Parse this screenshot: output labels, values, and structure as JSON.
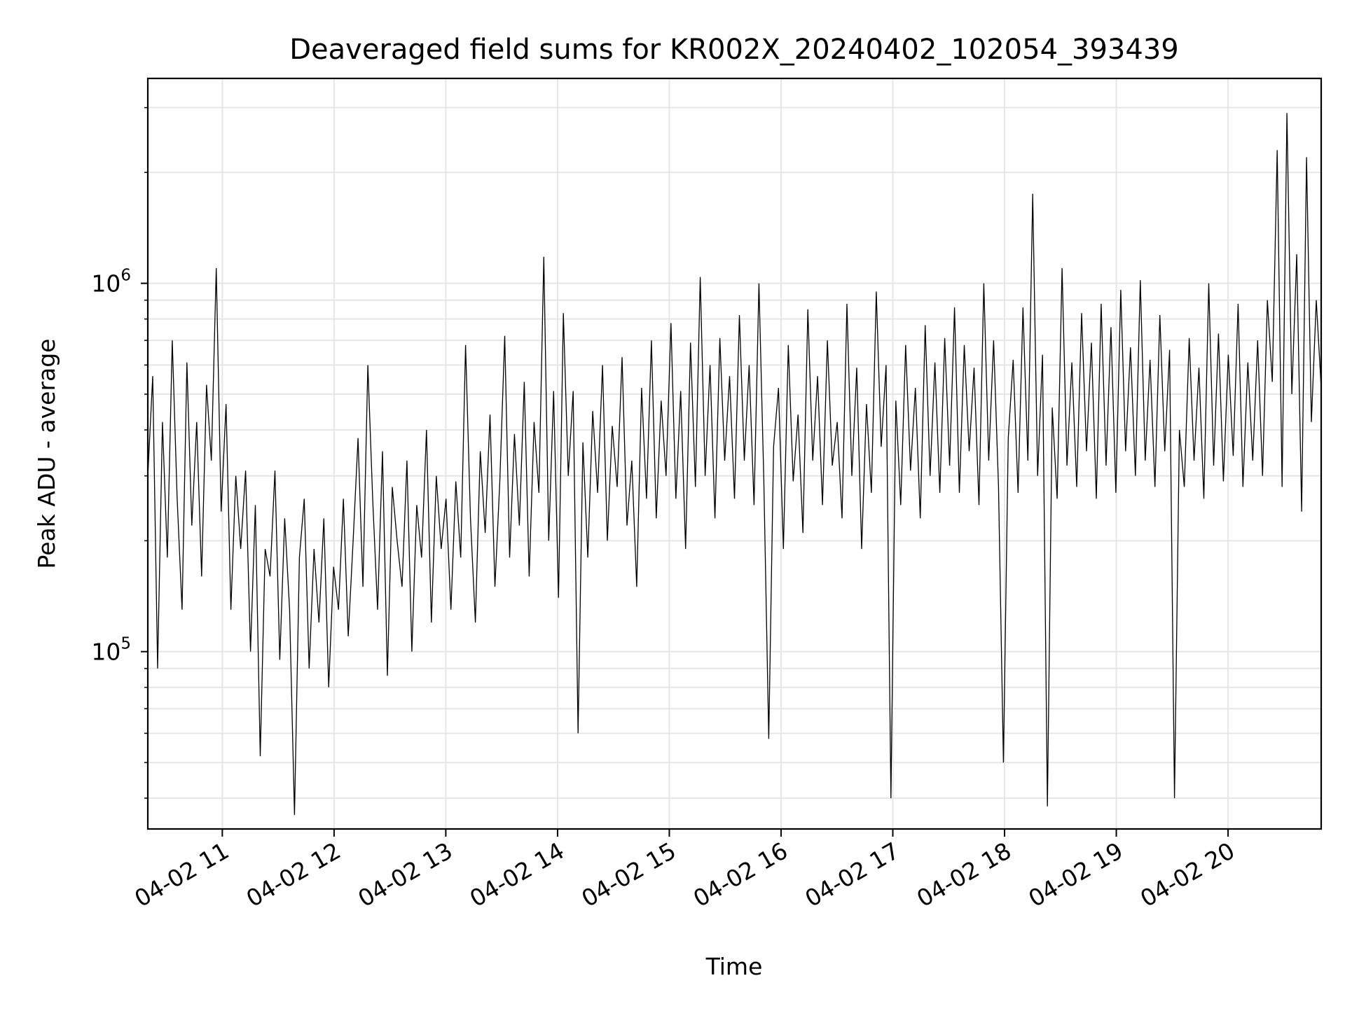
{
  "chart_data": {
    "type": "line",
    "title": "Deaveraged field sums for KR002X_20240402_102054_393439",
    "xlabel": "Time",
    "ylabel": "Peak ADU - average",
    "x_ticks": [
      "04-02 11",
      "04-02 12",
      "04-02 13",
      "04-02 14",
      "04-02 15",
      "04-02 16",
      "04-02 17",
      "04-02 18",
      "04-02 19",
      "04-02 20"
    ],
    "y_ticks": [
      {
        "base": "10",
        "exp": "5"
      },
      {
        "base": "10",
        "exp": "6"
      }
    ],
    "y_scale": "log",
    "xlim": [
      "2024-04-02 10:20",
      "2024-04-02 20:50"
    ],
    "ylim": [
      33000,
      3600000
    ],
    "grid": true,
    "series_color": "#000000",
    "series": [
      {
        "x_start": "2024-04-02 10:20",
        "x_end": "2024-04-02 20:50",
        "values": [
          300000,
          560000,
          90000,
          420000,
          180000,
          700000,
          260000,
          130000,
          610000,
          220000,
          420000,
          160000,
          530000,
          330000,
          1100000,
          240000,
          470000,
          130000,
          300000,
          190000,
          310000,
          100000,
          250000,
          52000,
          190000,
          160000,
          310000,
          95000,
          230000,
          130000,
          36000,
          180000,
          260000,
          90000,
          190000,
          120000,
          230000,
          80000,
          170000,
          130000,
          260000,
          110000,
          200000,
          380000,
          150000,
          600000,
          260000,
          130000,
          350000,
          86000,
          280000,
          200000,
          150000,
          330000,
          100000,
          250000,
          180000,
          400000,
          120000,
          300000,
          190000,
          260000,
          130000,
          290000,
          180000,
          680000,
          230000,
          120000,
          350000,
          210000,
          440000,
          150000,
          290000,
          720000,
          180000,
          390000,
          220000,
          540000,
          160000,
          420000,
          270000,
          1180000,
          200000,
          510000,
          140000,
          830000,
          300000,
          510000,
          60000,
          370000,
          180000,
          450000,
          270000,
          600000,
          200000,
          410000,
          280000,
          630000,
          220000,
          330000,
          150000,
          520000,
          260000,
          700000,
          230000,
          480000,
          300000,
          780000,
          260000,
          510000,
          190000,
          690000,
          280000,
          1040000,
          300000,
          600000,
          230000,
          710000,
          330000,
          560000,
          260000,
          820000,
          330000,
          600000,
          250000,
          1000000,
          290000,
          58000,
          360000,
          520000,
          190000,
          680000,
          290000,
          440000,
          210000,
          850000,
          330000,
          560000,
          250000,
          700000,
          320000,
          420000,
          230000,
          880000,
          300000,
          590000,
          190000,
          470000,
          270000,
          950000,
          360000,
          600000,
          40000,
          480000,
          250000,
          680000,
          310000,
          520000,
          230000,
          770000,
          300000,
          610000,
          270000,
          710000,
          320000,
          860000,
          270000,
          680000,
          350000,
          590000,
          250000,
          1000000,
          330000,
          700000,
          280000,
          50000,
          380000,
          620000,
          270000,
          860000,
          330000,
          1750000,
          300000,
          640000,
          38000,
          460000,
          260000,
          1100000,
          320000,
          610000,
          280000,
          830000,
          350000,
          690000,
          260000,
          880000,
          320000,
          760000,
          270000,
          960000,
          350000,
          670000,
          300000,
          1020000,
          330000,
          620000,
          280000,
          820000,
          350000,
          660000,
          40000,
          400000,
          280000,
          710000,
          330000,
          590000,
          260000,
          1000000,
          320000,
          730000,
          290000,
          640000,
          340000,
          880000,
          280000,
          610000,
          330000,
          700000,
          300000,
          900000,
          540000,
          2300000,
          280000,
          2900000,
          500000,
          1200000,
          240000,
          2200000,
          420000,
          900000,
          520000
        ]
      }
    ]
  }
}
